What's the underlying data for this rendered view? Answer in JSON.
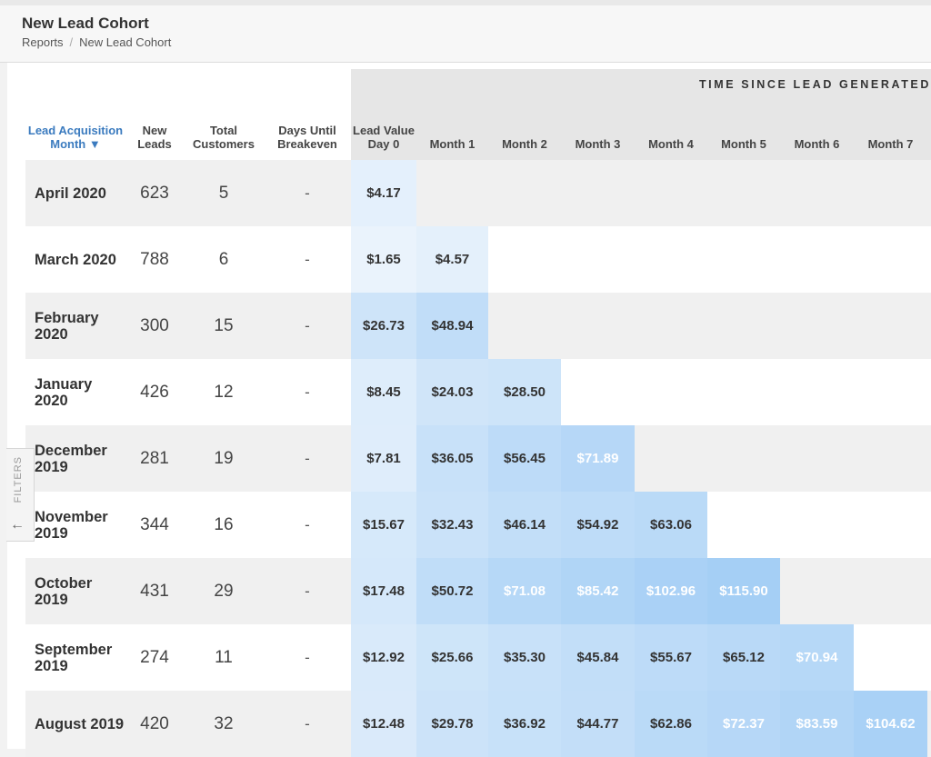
{
  "header": {
    "title": "New Lead Cohort",
    "breadcrumb": [
      "Reports",
      "New Lead Cohort"
    ]
  },
  "filters_tab": {
    "label": "FILTERS",
    "arrow": "←",
    "icon": "arrow-left-icon"
  },
  "table": {
    "group_header": "TIME SINCE LEAD GENERATED",
    "columns": [
      "Lead Acquisition Month ▼",
      "New Leads",
      "Total Customers",
      "Days Until Breakeven",
      "Lead Value Day 0",
      "Month 1",
      "Month 2",
      "Month 3",
      "Month 4",
      "Month 5",
      "Month 6",
      "Month 7"
    ],
    "sort_column": "Lead Acquisition Month",
    "sort_direction": "descending",
    "rows": [
      {
        "month": "April 2020",
        "new_leads": "623",
        "total_customers": "5",
        "days_until_breakeven": "-",
        "values": [
          "$4.17"
        ]
      },
      {
        "month": "March 2020",
        "new_leads": "788",
        "total_customers": "6",
        "days_until_breakeven": "-",
        "values": [
          "$1.65",
          "$4.57"
        ]
      },
      {
        "month": "February 2020",
        "new_leads": "300",
        "total_customers": "15",
        "days_until_breakeven": "-",
        "values": [
          "$26.73",
          "$48.94"
        ]
      },
      {
        "month": "January 2020",
        "new_leads": "426",
        "total_customers": "12",
        "days_until_breakeven": "-",
        "values": [
          "$8.45",
          "$24.03",
          "$28.50"
        ]
      },
      {
        "month": "December 2019",
        "new_leads": "281",
        "total_customers": "19",
        "days_until_breakeven": "-",
        "values": [
          "$7.81",
          "$36.05",
          "$56.45",
          "$71.89"
        ]
      },
      {
        "month": "November 2019",
        "new_leads": "344",
        "total_customers": "16",
        "days_until_breakeven": "-",
        "values": [
          "$15.67",
          "$32.43",
          "$46.14",
          "$54.92",
          "$63.06"
        ]
      },
      {
        "month": "October 2019",
        "new_leads": "431",
        "total_customers": "29",
        "days_until_breakeven": "-",
        "values": [
          "$17.48",
          "$50.72",
          "$71.08",
          "$85.42",
          "$102.96",
          "$115.90"
        ]
      },
      {
        "month": "September 2019",
        "new_leads": "274",
        "total_customers": "11",
        "days_until_breakeven": "-",
        "values": [
          "$12.92",
          "$25.66",
          "$35.30",
          "$45.84",
          "$55.67",
          "$65.12",
          "$70.94"
        ]
      },
      {
        "month": "August 2019",
        "new_leads": "420",
        "total_customers": "32",
        "days_until_breakeven": "-",
        "values": [
          "$12.48",
          "$29.78",
          "$36.92",
          "$44.77",
          "$62.86",
          "$72.37",
          "$83.59",
          "$104.62"
        ]
      }
    ]
  },
  "colors": {
    "heat_low": "#f3f8fd",
    "heat_high": "#a4cef5",
    "highlight_text": "#ffffff",
    "sort_link": "#3b7bbf"
  }
}
